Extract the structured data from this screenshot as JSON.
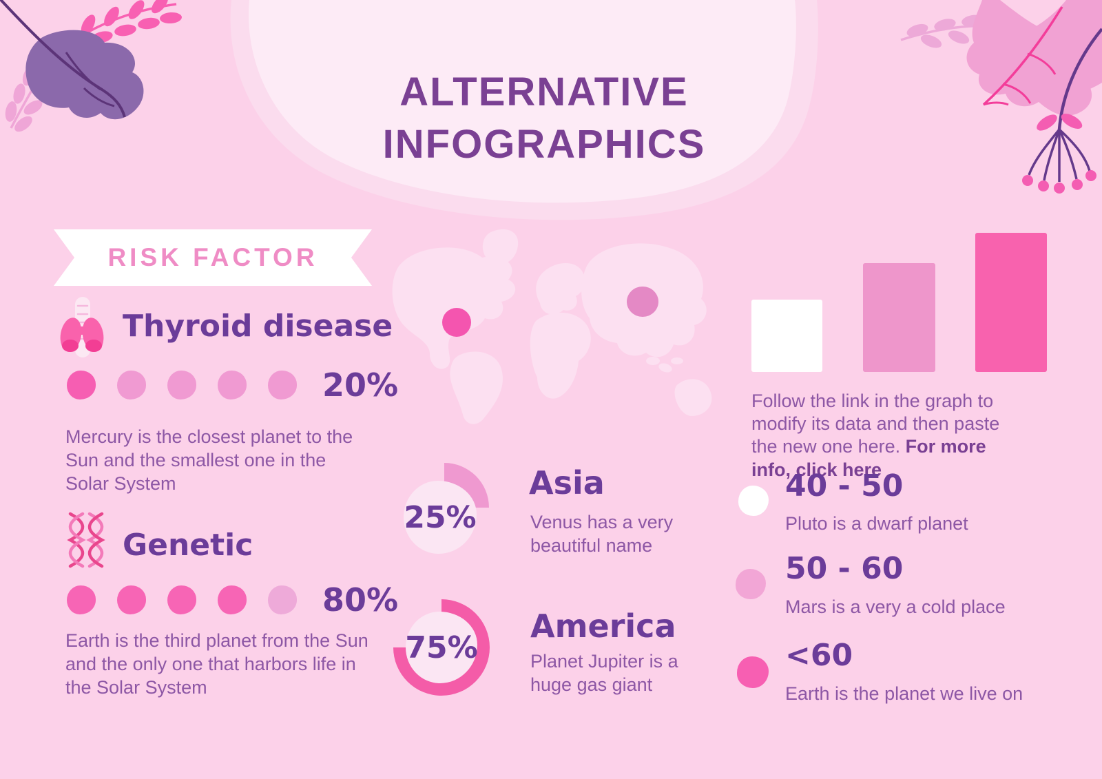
{
  "title": {
    "line1": "ALTERNATIVE",
    "line2": "INFOGRAPHICS"
  },
  "risk_factor": {
    "banner_label": "RISK FACTOR",
    "items": [
      {
        "name": "Thyroid disease",
        "icon": "thyroid-icon",
        "percent": "20%",
        "filled_dots": 1,
        "total_dots": 5,
        "dot_filled_color": "#f65eb2",
        "dot_empty_color": "#f09ad2",
        "description": "Mercury is the closest planet to the Sun and the smallest one in the Solar System"
      },
      {
        "name": "Genetic",
        "icon": "dna-icon",
        "percent": "80%",
        "filled_dots": 4,
        "total_dots": 5,
        "dot_filled_color": "#f765b5",
        "dot_empty_color": "#eeaad9",
        "description": "Earth is the third planet from the Sun and the only one that harbors life in the Solar System"
      }
    ]
  },
  "map": {
    "markers": [
      "America",
      "Asia"
    ]
  },
  "continents": [
    {
      "percent": "25%",
      "value": 25,
      "arc_color": "#ef99d0",
      "name": "Asia",
      "description": "Venus has a very beautiful name"
    },
    {
      "percent": "75%",
      "value": 75,
      "arc_color": "#f45ca8",
      "name": "America",
      "description": "Planet Jupiter is a huge gas giant"
    }
  ],
  "note": {
    "text": "Follow the link in the graph to modify its data and then paste the new one here. ",
    "bold": "For more info, click here"
  },
  "legend": [
    {
      "range": "40 - 50",
      "color": "#ffffff",
      "description": "Pluto is a dwarf planet"
    },
    {
      "range": "50 - 60",
      "color": "#f2a6d6",
      "description": "Mars is a very a cold place"
    },
    {
      "range": "<60",
      "color": "#f75fb2",
      "description": "Earth is the planet we live on"
    }
  ],
  "colors": {
    "background": "#fcd1e9",
    "title_purple": "#7a4093",
    "heading_purple": "#6b3c99",
    "body_purple": "#8d57a5",
    "banner_pink": "#ef8cc5",
    "bright_pink": "#f65eb2",
    "medium_pink": "#f09ad2",
    "blob_light": "#fdebf6"
  },
  "chart_data": [
    {
      "type": "bar",
      "title": "",
      "categories": [
        "40 - 50",
        "50 - 60",
        "<60"
      ],
      "values": [
        52,
        78,
        100
      ],
      "colors": [
        "#ffffff",
        "#ee96cb",
        "#f862ae"
      ],
      "xlabel": "",
      "ylabel": "",
      "legend_position": "right",
      "grid": false
    },
    {
      "type": "pie",
      "label": "Asia",
      "value": 25,
      "unit": "%"
    },
    {
      "type": "pie",
      "label": "America",
      "value": 75,
      "unit": "%"
    },
    {
      "type": "dots",
      "label": "Thyroid disease",
      "value": 20,
      "unit": "%",
      "filled": 1,
      "total": 5
    },
    {
      "type": "dots",
      "label": "Genetic",
      "value": 80,
      "unit": "%",
      "filled": 4,
      "total": 5
    }
  ]
}
